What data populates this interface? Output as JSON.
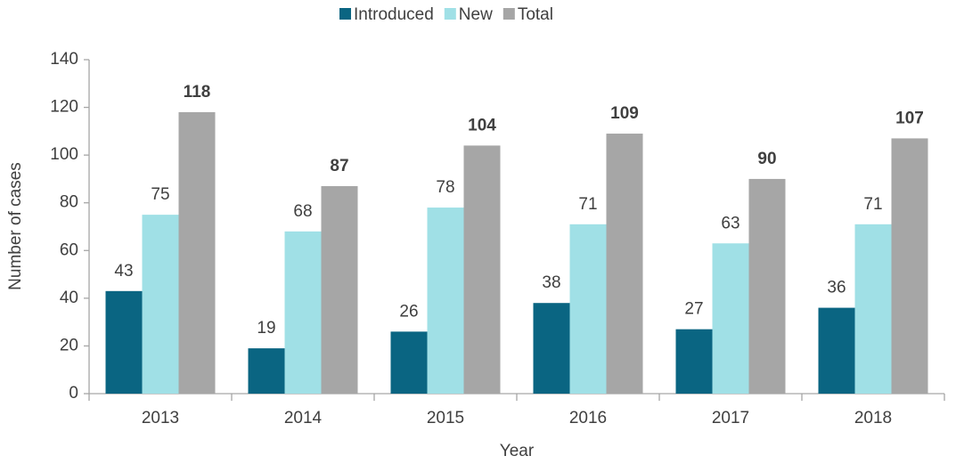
{
  "chart_data": {
    "type": "bar",
    "x_label": "Year",
    "y_label": "Number of cases",
    "categories": [
      "2013",
      "2014",
      "2015",
      "2016",
      "2017",
      "2018"
    ],
    "series": [
      {
        "name": "Introduced",
        "color": "#0a6582",
        "values": [
          43,
          19,
          26,
          38,
          27,
          36
        ]
      },
      {
        "name": "New",
        "color": "#a0e0e6",
        "values": [
          75,
          68,
          78,
          71,
          63,
          71
        ]
      },
      {
        "name": "Total",
        "color": "#a6a6a6",
        "values": [
          118,
          87,
          104,
          109,
          90,
          107
        ]
      }
    ],
    "ylim": [
      0,
      140
    ],
    "yticks": [
      0,
      20,
      40,
      60,
      80,
      100,
      120,
      140
    ],
    "legend": "top"
  }
}
